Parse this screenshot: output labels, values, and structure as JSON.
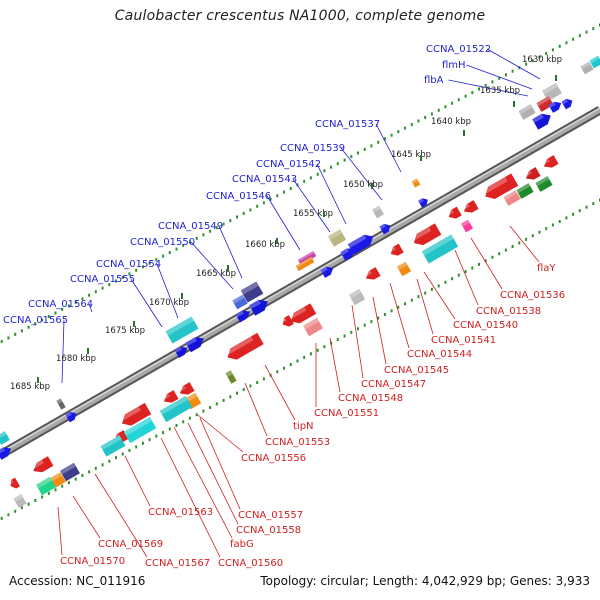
{
  "title": "Caulobacter crescentus NA1000, complete genome",
  "footer": {
    "accession": "Accession: NC_011916",
    "summary": "Topology: circular; Length: 4,042,929 bp; Genes: 3,933"
  },
  "colors": {
    "backbone": "#8a8a8a",
    "tick_dots": "#2f8f2f",
    "forward_label": "#1f1fd0",
    "reverse_label": "#d01f1f"
  },
  "kbp_ticks": [
    "1630 kbp",
    "1635 kbp",
    "1640 kbp",
    "1645 kbp",
    "1650 kbp",
    "1655 kbp",
    "1660 kbp",
    "1665 kbp",
    "1670 kbp",
    "1675 kbp",
    "1680 kbp",
    "1685 kbp"
  ],
  "forward_labels": [
    "CCNA_01522",
    "flmH",
    "flbA",
    "CCNA_01537",
    "CCNA_01539",
    "CCNA_01542",
    "CCNA_01543",
    "CCNA_01546",
    "CCNA_01549",
    "CCNA_01550",
    "CCNA_01554",
    "CCNA_01555",
    "CCNA_01564",
    "CCNA_01565"
  ],
  "reverse_labels": [
    "flaY",
    "CCNA_01536",
    "CCNA_01538",
    "CCNA_01540",
    "CCNA_01541",
    "CCNA_01544",
    "CCNA_01545",
    "CCNA_01547",
    "CCNA_01548",
    "CCNA_01551",
    "tipN",
    "CCNA_01553",
    "CCNA_01556",
    "CCNA_01557",
    "CCNA_01558",
    "fabG",
    "CCNA_01560",
    "CCNA_01563",
    "CCNA_01567",
    "CCNA_01569",
    "CCNA_01570"
  ]
}
